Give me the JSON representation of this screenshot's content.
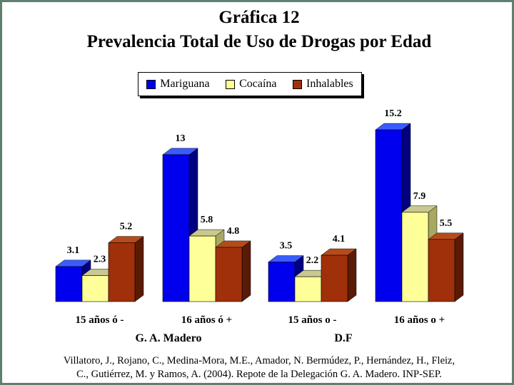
{
  "title": "Gráfica 12",
  "subtitle": "Prevalencia Total de Uso de Drogas por Edad",
  "citation": {
    "line1": "Villatoro, J., Rojano, C., Medina-Mora, M.E., Amador, N. Bermúdez, P., Hernández, H., Fleiz,",
    "line2": "C., Gutiérrez, M. y Ramos, A. (2004). Repote de la Delegación G. A. Madero. INP-SEP."
  },
  "colors": {
    "Mariguana": "#0000ee",
    "Cocaína": "#ffff99",
    "Inhalables": "#a0300a"
  },
  "chart_data": {
    "type": "bar",
    "title": "Gráfica 12",
    "subtitle": "Prevalencia Total de Uso de Drogas por Edad",
    "legend_position": "top",
    "grid": false,
    "categories": [
      "15 años ó -",
      "16 años ó +",
      "15 años o -",
      "16 años o +"
    ],
    "groups": [
      {
        "label": "G. A. Madero",
        "categories": [
          "15 años ó -",
          "16 años ó +"
        ]
      },
      {
        "label": "D.F",
        "categories": [
          "15 años o -",
          "16 años o +"
        ]
      }
    ],
    "series": [
      {
        "name": "Mariguana",
        "values": [
          3.1,
          13,
          3.5,
          15.2
        ]
      },
      {
        "name": "Cocaína",
        "values": [
          2.3,
          5.8,
          2.2,
          7.9
        ]
      },
      {
        "name": "Inhalables",
        "values": [
          5.2,
          4.8,
          4.1,
          5.5
        ]
      }
    ],
    "data_labels": [
      [
        "3.1",
        "13",
        "3.5",
        "15.2"
      ],
      [
        "2.3",
        "5.8",
        "2.2",
        "7.9"
      ],
      [
        "5.2",
        "4.8",
        "4.1",
        "5.5"
      ]
    ]
  }
}
